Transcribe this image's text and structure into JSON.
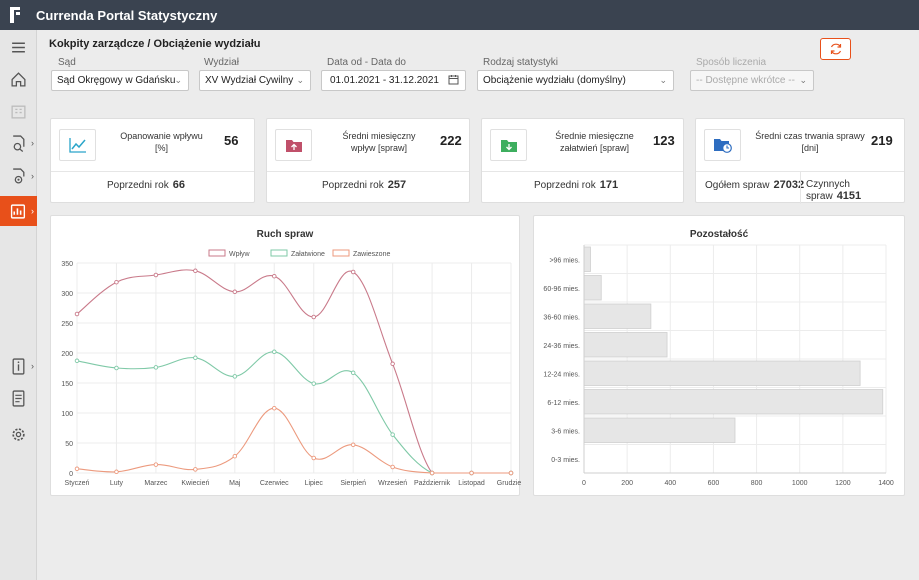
{
  "app": {
    "title": "Currenda Portal Statystyczny"
  },
  "breadcrumb": "Kokpity zarządcze / Obciążenie wydziału",
  "filters": {
    "court": {
      "label": "Sąd",
      "value": "Sąd Okręgowy w Gdańsku"
    },
    "department": {
      "label": "Wydział",
      "value": "XV Wydział Cywilny"
    },
    "dates": {
      "label": "Data od - Data do",
      "value": "01.01.2021 - 31.12.2021"
    },
    "stat_type": {
      "label": "Rodzaj statystyki",
      "value": "Obciążenie wydziału (domyślny)"
    },
    "calc_method": {
      "label": "Sposób liczenia",
      "value": "-- Dostępne wkrótce --"
    }
  },
  "kpis": [
    {
      "label": "Opanowanie wpływu [%]",
      "value": "56",
      "prev_label": "Poprzedni rok",
      "prev_value": "66",
      "icon": "line-chart-icon",
      "color": "#2aa5c9"
    },
    {
      "label": "Średni miesięczny wpływ [spraw]",
      "value": "222",
      "prev_label": "Poprzedni rok",
      "prev_value": "257",
      "icon": "folder-upload-icon",
      "color": "#c0506a"
    },
    {
      "label": "Średnie miesięczne załatwień [spraw]",
      "value": "123",
      "prev_label": "Poprzedni rok",
      "prev_value": "171",
      "icon": "folder-download-icon",
      "color": "#3dae5e"
    },
    {
      "label": "Średni czas trwania sprawy [dni]",
      "value": "219",
      "total_label": "Ogółem spraw",
      "total_value": "27032",
      "active_label": "Czynnych spraw",
      "active_value": "4151",
      "icon": "folder-clock-icon",
      "color": "#2e6dc0"
    }
  ],
  "chart_data": [
    {
      "type": "line",
      "title": "Ruch spraw",
      "categories": [
        "Styczeń",
        "Luty",
        "Marzec",
        "Kwiecień",
        "Maj",
        "Czerwiec",
        "Lipiec",
        "Sierpień",
        "Wrzesień",
        "Październik",
        "Listopad",
        "Grudzień"
      ],
      "series": [
        {
          "name": "Wpływ",
          "color": "#c97a8a",
          "values": [
            265,
            318,
            330,
            337,
            302,
            328,
            260,
            335,
            182,
            0,
            0,
            0
          ]
        },
        {
          "name": "Załatwione",
          "color": "#7fc9a7",
          "values": [
            187,
            175,
            176,
            192,
            161,
            202,
            149,
            167,
            64,
            0,
            0,
            0
          ]
        },
        {
          "name": "Zawieszone",
          "color": "#ec9a7e",
          "values": [
            7,
            2,
            14,
            6,
            28,
            108,
            25,
            47,
            10,
            0,
            0,
            0
          ]
        }
      ],
      "ylim": [
        0,
        350
      ],
      "yticks": [
        0,
        50,
        100,
        150,
        200,
        250,
        300,
        350
      ],
      "legend": "top",
      "grid": true
    },
    {
      "type": "bar",
      "orientation": "horizontal",
      "title": "Pozostałość",
      "categories": [
        ">96 mies.",
        "60-96 mies.",
        "36-60 mies.",
        "24-36 mies.",
        "12-24 mies.",
        "6-12 mies.",
        "3-6 mies.",
        "0-3 mies."
      ],
      "values": [
        30,
        80,
        310,
        385,
        1280,
        1385,
        700,
        0
      ],
      "xlim": [
        0,
        1400
      ],
      "xticks": [
        0,
        200,
        400,
        600,
        800,
        1000,
        1200,
        1400
      ],
      "color": "#e6e6e6",
      "grid": true
    }
  ]
}
